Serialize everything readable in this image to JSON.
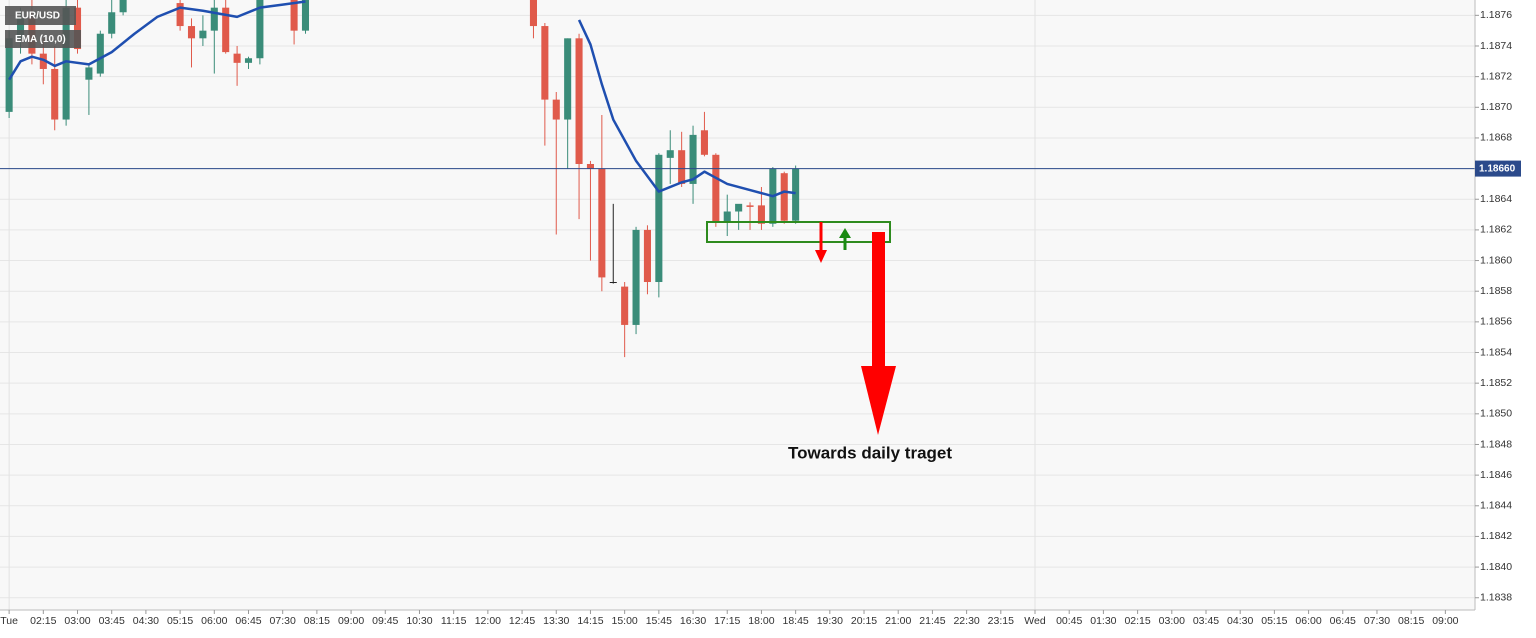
{
  "chart_data": {
    "type": "candlestick",
    "series": [
      {
        "name": "EUR/USD",
        "up_color": "#3a8c79",
        "down_color": "#e05a4b",
        "flat_color": "#222222",
        "x": [
          0,
          1,
          2,
          3,
          4,
          5,
          6,
          7,
          8,
          9,
          10,
          15,
          16,
          17,
          18,
          19,
          20,
          21,
          22,
          25,
          26,
          46,
          47,
          48,
          49,
          50,
          51,
          52,
          53,
          54,
          55,
          56,
          57,
          58,
          59,
          60,
          61,
          62,
          63,
          64,
          65,
          66,
          67,
          68,
          69
        ],
        "open": [
          1.18697,
          1.18745,
          1.18758,
          1.18735,
          1.18725,
          1.18692,
          1.18765,
          1.18718,
          1.18722,
          1.18748,
          1.18762,
          1.18768,
          1.18753,
          1.18745,
          1.1875,
          1.18765,
          1.18735,
          1.18729,
          1.18732,
          1.18771,
          1.1875,
          1.18771,
          1.18753,
          1.18705,
          1.18692,
          1.18745,
          1.18663,
          1.1866,
          1.18586,
          1.18583,
          1.18558,
          1.1862,
          1.18586,
          1.18667,
          1.18672,
          1.1865,
          1.18685,
          1.18669,
          1.18625,
          1.18632,
          1.18636,
          1.18636,
          1.18624,
          1.18657,
          1.18626
        ],
        "high": [
          1.1875,
          1.18765,
          1.1877,
          1.18745,
          1.1874,
          1.1877,
          1.18772,
          1.18728,
          1.1875,
          1.1877,
          1.18772,
          1.18772,
          1.18758,
          1.1876,
          1.18771,
          1.18772,
          1.1874,
          1.18733,
          1.18772,
          1.18772,
          1.18772,
          1.18772,
          1.18755,
          1.1871,
          1.18745,
          1.18748,
          1.18665,
          1.18695,
          1.18637,
          1.18586,
          1.18622,
          1.18623,
          1.1867,
          1.18685,
          1.18684,
          1.18688,
          1.18697,
          1.1867,
          1.18643,
          1.18635,
          1.18638,
          1.18648,
          1.18661,
          1.18658,
          1.18662
        ],
        "low": [
          1.18693,
          1.18735,
          1.18728,
          1.18715,
          1.18685,
          1.18688,
          1.18735,
          1.18695,
          1.1872,
          1.18745,
          1.1876,
          1.1875,
          1.18726,
          1.1874,
          1.18722,
          1.18735,
          1.18714,
          1.18725,
          1.18728,
          1.18741,
          1.18748,
          1.18745,
          1.18675,
          1.18617,
          1.1866,
          1.18627,
          1.186,
          1.1858,
          1.18585,
          1.18537,
          1.18552,
          1.18578,
          1.18576,
          1.1865,
          1.18648,
          1.18637,
          1.18668,
          1.18622,
          1.18616,
          1.1862,
          1.1862,
          1.1862,
          1.18622,
          1.18624,
          1.18624
        ],
        "close": [
          1.18745,
          1.18758,
          1.18735,
          1.18725,
          1.18692,
          1.18765,
          1.18738,
          1.18726,
          1.18748,
          1.18762,
          1.18771,
          1.18753,
          1.18745,
          1.1875,
          1.18765,
          1.18736,
          1.18729,
          1.18732,
          1.18771,
          1.1875,
          1.18771,
          1.18753,
          1.18705,
          1.18692,
          1.18745,
          1.18663,
          1.1866,
          1.18589,
          1.18586,
          1.18558,
          1.1862,
          1.18586,
          1.18669,
          1.18672,
          1.1865,
          1.18682,
          1.18669,
          1.18625,
          1.18632,
          1.18637,
          1.18635,
          1.18624,
          1.1866,
          1.18626,
          1.1866
        ]
      }
    ],
    "ema": {
      "name": "EMA (10,0)",
      "color": "#1f4fb0",
      "x": [
        0,
        1,
        2,
        3,
        4,
        5,
        7,
        9,
        11,
        13,
        15,
        17,
        20,
        22,
        24,
        26,
        38,
        50,
        51,
        52,
        53,
        55,
        57,
        59,
        60,
        61,
        62,
        63,
        65,
        67,
        68,
        69
      ],
      "values": [
        1.18718,
        1.1873,
        1.18733,
        1.18731,
        1.18727,
        1.1873,
        1.18728,
        1.18736,
        1.18748,
        1.18759,
        1.18765,
        1.18763,
        1.18759,
        1.18765,
        1.18767,
        1.18769,
        null,
        1.18757,
        1.18741,
        1.18715,
        1.18692,
        1.18665,
        1.18645,
        1.18651,
        1.18653,
        1.18658,
        1.18654,
        1.1865,
        1.18646,
        1.18642,
        1.18645,
        1.18644
      ]
    },
    "last_price": {
      "value": 1.1866,
      "label": "1.18660",
      "color": "#2b4a8b"
    },
    "annotation": "Towards daily traget",
    "xlim": [
      -0.8,
      128.6
    ],
    "ylim": [
      1.18372,
      1.1877
    ],
    "grid": true,
    "xticks": [
      {
        "value": 0,
        "label": "Tue"
      },
      {
        "value": 3,
        "label": "02:15"
      },
      {
        "value": 6,
        "label": "03:00"
      },
      {
        "value": 9,
        "label": "03:45"
      },
      {
        "value": 12,
        "label": "04:30"
      },
      {
        "value": 15,
        "label": "05:15"
      },
      {
        "value": 18,
        "label": "06:00"
      },
      {
        "value": 21,
        "label": "06:45"
      },
      {
        "value": 24,
        "label": "07:30"
      },
      {
        "value": 27,
        "label": "08:15"
      },
      {
        "value": 30,
        "label": "09:00"
      },
      {
        "value": 33,
        "label": "09:45"
      },
      {
        "value": 36,
        "label": "10:30"
      },
      {
        "value": 39,
        "label": "11:15"
      },
      {
        "value": 42,
        "label": "12:00"
      },
      {
        "value": 45,
        "label": "12:45"
      },
      {
        "value": 48,
        "label": "13:30"
      },
      {
        "value": 51,
        "label": "14:15"
      },
      {
        "value": 54,
        "label": "15:00"
      },
      {
        "value": 57,
        "label": "15:45"
      },
      {
        "value": 60,
        "label": "16:30"
      },
      {
        "value": 63,
        "label": "17:15"
      },
      {
        "value": 66,
        "label": "18:00"
      },
      {
        "value": 69,
        "label": "18:45"
      },
      {
        "value": 72,
        "label": "19:30"
      },
      {
        "value": 75,
        "label": "20:15"
      },
      {
        "value": 78,
        "label": "21:00"
      },
      {
        "value": 81,
        "label": "21:45"
      },
      {
        "value": 84,
        "label": "22:30"
      },
      {
        "value": 87,
        "label": "23:15"
      },
      {
        "value": 90,
        "label": "Wed"
      },
      {
        "value": 93,
        "label": "00:45"
      },
      {
        "value": 96,
        "label": "01:30"
      },
      {
        "value": 99,
        "label": "02:15"
      },
      {
        "value": 102,
        "label": "03:00"
      },
      {
        "value": 105,
        "label": "03:45"
      },
      {
        "value": 108,
        "label": "04:30"
      },
      {
        "value": 111,
        "label": "05:15"
      },
      {
        "value": 114,
        "label": "06:00"
      },
      {
        "value": 117,
        "label": "06:45"
      },
      {
        "value": 120,
        "label": "07:30"
      },
      {
        "value": 123,
        "label": "08:15"
      },
      {
        "value": 126,
        "label": "09:00"
      }
    ],
    "yticks": [
      1.1838,
      {
        "value": 1.184,
        "label": "1.1840"
      },
      1.1842,
      1.1844,
      1.1846,
      1.1848,
      {
        "value": 1.185,
        "label": "1.1850"
      },
      1.1852,
      1.1854,
      1.1856,
      1.1858,
      {
        "value": 1.186,
        "label": "1.1860"
      },
      1.1862,
      1.1864,
      1.1866,
      1.1868,
      {
        "value": 1.187,
        "label": "1.1870"
      },
      1.1872,
      1.1874,
      1.1876
    ]
  }
}
